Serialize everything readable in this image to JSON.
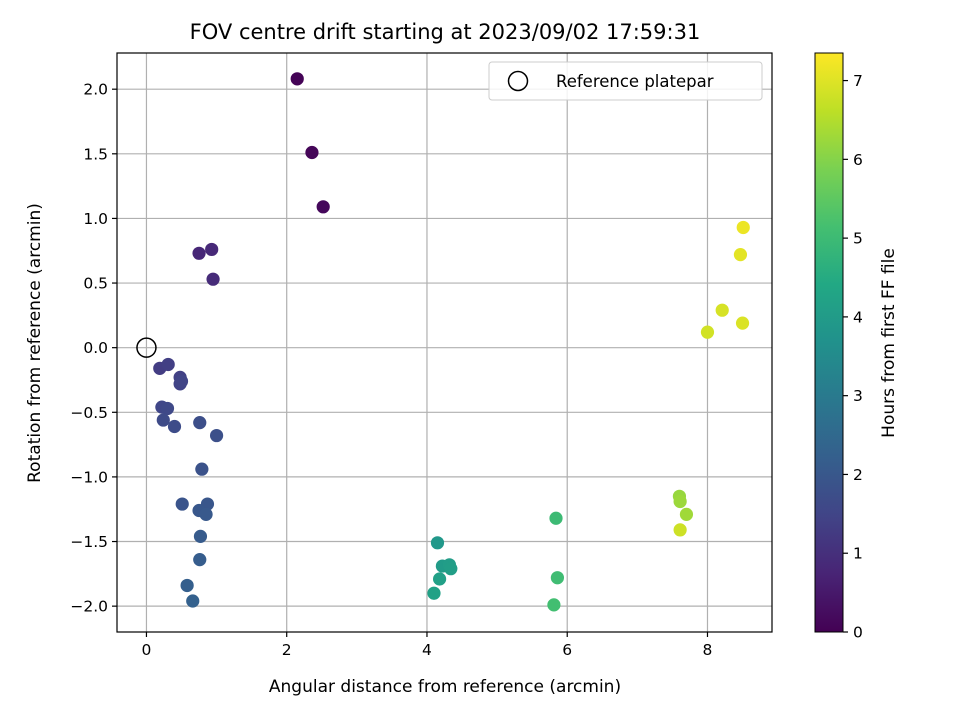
{
  "chart_data": {
    "type": "scatter",
    "title": "FOV centre drift starting at 2023/09/02 17:59:31",
    "xlabel": "Angular distance from reference (arcmin)",
    "ylabel": "Rotation from reference (arcmin)",
    "xlim": [
      -0.42,
      8.92
    ],
    "ylim": [
      -2.2,
      2.28
    ],
    "xticks": [
      0,
      2,
      4,
      6,
      8
    ],
    "yticks": [
      -2.0,
      -1.5,
      -1.0,
      -0.5,
      0.0,
      0.5,
      1.0,
      1.5,
      2.0
    ],
    "ytick_labels": [
      "−2.0",
      "−1.5",
      "−1.0",
      "−0.5",
      "0.0",
      "0.5",
      "1.0",
      "1.5",
      "2.0"
    ],
    "grid": true,
    "legend": {
      "position": "top-right",
      "entries": [
        "Reference platepar"
      ]
    },
    "reference_point": {
      "x": 0.0,
      "y": 0.0
    },
    "colorbar": {
      "label": "Hours from first FF file",
      "colormap": "viridis",
      "range": [
        0,
        7.35
      ],
      "ticks": [
        0,
        1,
        2,
        3,
        4,
        5,
        6,
        7
      ]
    },
    "points": [
      {
        "x": 2.15,
        "y": 2.08,
        "c": 0.05
      },
      {
        "x": 2.36,
        "y": 1.51,
        "c": 0.1
      },
      {
        "x": 2.52,
        "y": 1.09,
        "c": 0.15
      },
      {
        "x": 0.75,
        "y": 0.73,
        "c": 0.8
      },
      {
        "x": 0.93,
        "y": 0.76,
        "c": 0.85
      },
      {
        "x": 0.95,
        "y": 0.53,
        "c": 0.9
      },
      {
        "x": 0.19,
        "y": -0.16,
        "c": 1.3
      },
      {
        "x": 0.31,
        "y": -0.13,
        "c": 1.35
      },
      {
        "x": 0.48,
        "y": -0.23,
        "c": 1.4
      },
      {
        "x": 0.48,
        "y": -0.28,
        "c": 1.45
      },
      {
        "x": 0.5,
        "y": -0.26,
        "c": 1.5
      },
      {
        "x": 0.22,
        "y": -0.46,
        "c": 1.55
      },
      {
        "x": 0.3,
        "y": -0.47,
        "c": 1.6
      },
      {
        "x": 0.24,
        "y": -0.56,
        "c": 1.65
      },
      {
        "x": 0.4,
        "y": -0.61,
        "c": 1.7
      },
      {
        "x": 0.76,
        "y": -0.58,
        "c": 1.75
      },
      {
        "x": 1.0,
        "y": -0.68,
        "c": 1.8
      },
      {
        "x": 0.79,
        "y": -0.94,
        "c": 1.85
      },
      {
        "x": 0.51,
        "y": -1.21,
        "c": 1.9
      },
      {
        "x": 0.87,
        "y": -1.21,
        "c": 1.95
      },
      {
        "x": 0.75,
        "y": -1.26,
        "c": 2.0
      },
      {
        "x": 0.85,
        "y": -1.29,
        "c": 2.05
      },
      {
        "x": 0.77,
        "y": -1.46,
        "c": 2.1
      },
      {
        "x": 0.76,
        "y": -1.64,
        "c": 2.15
      },
      {
        "x": 0.58,
        "y": -1.84,
        "c": 2.2
      },
      {
        "x": 0.66,
        "y": -1.96,
        "c": 2.25
      },
      {
        "x": 4.15,
        "y": -1.51,
        "c": 3.9
      },
      {
        "x": 4.22,
        "y": -1.69,
        "c": 4.0
      },
      {
        "x": 4.32,
        "y": -1.68,
        "c": 4.05
      },
      {
        "x": 4.34,
        "y": -1.71,
        "c": 4.1
      },
      {
        "x": 4.18,
        "y": -1.79,
        "c": 4.15
      },
      {
        "x": 4.1,
        "y": -1.9,
        "c": 4.2
      },
      {
        "x": 5.84,
        "y": -1.32,
        "c": 5.0
      },
      {
        "x": 5.86,
        "y": -1.78,
        "c": 5.05
      },
      {
        "x": 5.81,
        "y": -1.99,
        "c": 5.1
      },
      {
        "x": 7.6,
        "y": -1.15,
        "c": 6.2
      },
      {
        "x": 7.61,
        "y": -1.19,
        "c": 6.25
      },
      {
        "x": 7.7,
        "y": -1.29,
        "c": 6.3
      },
      {
        "x": 7.61,
        "y": -1.41,
        "c": 6.8
      },
      {
        "x": 8.0,
        "y": 0.12,
        "c": 6.85
      },
      {
        "x": 8.21,
        "y": 0.29,
        "c": 6.9
      },
      {
        "x": 8.5,
        "y": 0.19,
        "c": 6.95
      },
      {
        "x": 8.47,
        "y": 0.72,
        "c": 7.05
      },
      {
        "x": 8.51,
        "y": 0.93,
        "c": 7.15
      }
    ]
  }
}
